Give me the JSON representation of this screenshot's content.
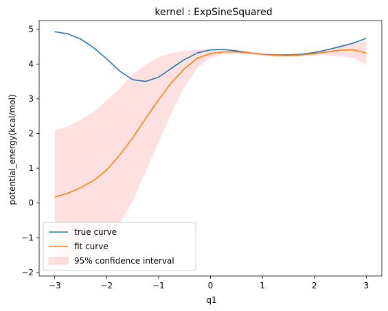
{
  "chart_data": {
    "type": "line",
    "title": "kernel : ExpSineSquared",
    "xlabel": "q1",
    "ylabel": "potential_energy(kcal/mol)",
    "xlim": [
      -3.3,
      3.3
    ],
    "ylim": [
      -2.1,
      5.25
    ],
    "xticks": [
      -3,
      -2,
      -1,
      0,
      1,
      2,
      3
    ],
    "yticks": [
      -2,
      -1,
      0,
      1,
      2,
      3,
      4,
      5
    ],
    "grid": false,
    "legend_position": "lower-left",
    "x": [
      -3.0,
      -2.75,
      -2.5,
      -2.25,
      -2.0,
      -1.75,
      -1.5,
      -1.25,
      -1.0,
      -0.75,
      -0.5,
      -0.25,
      0.0,
      0.25,
      0.5,
      0.75,
      1.0,
      1.25,
      1.5,
      1.75,
      2.0,
      2.25,
      2.5,
      2.75,
      3.0
    ],
    "series": [
      {
        "name": "true curve",
        "color": "#1f77b4",
        "values": [
          4.93,
          4.87,
          4.72,
          4.47,
          4.15,
          3.8,
          3.55,
          3.5,
          3.62,
          3.88,
          4.13,
          4.32,
          4.41,
          4.42,
          4.38,
          4.32,
          4.28,
          4.26,
          4.26,
          4.28,
          4.33,
          4.41,
          4.5,
          4.6,
          4.74
        ]
      },
      {
        "name": "fit curve",
        "color": "#ff7f0e",
        "values": [
          0.17,
          0.28,
          0.44,
          0.65,
          0.95,
          1.38,
          1.87,
          2.43,
          2.97,
          3.47,
          3.87,
          4.17,
          4.3,
          4.35,
          4.35,
          4.32,
          4.28,
          4.25,
          4.24,
          4.26,
          4.3,
          4.35,
          4.4,
          4.41,
          4.32
        ]
      }
    ],
    "confidence_interval": {
      "name": "95% confidence interval",
      "color": "#ff9999",
      "upper": [
        2.1,
        2.2,
        2.4,
        2.62,
        2.95,
        3.3,
        3.7,
        3.98,
        4.2,
        4.32,
        4.38,
        4.41,
        4.42,
        4.42,
        4.4,
        4.36,
        4.32,
        4.29,
        4.28,
        4.3,
        4.35,
        4.43,
        4.55,
        4.62,
        4.65
      ],
      "lower": [
        -1.8,
        -1.65,
        -1.5,
        -1.3,
        -1.05,
        -0.6,
        0.05,
        0.9,
        1.75,
        2.6,
        3.35,
        3.9,
        4.18,
        4.28,
        4.3,
        4.28,
        4.24,
        4.21,
        4.2,
        4.22,
        4.25,
        4.25,
        4.22,
        4.18,
        3.98
      ]
    }
  }
}
